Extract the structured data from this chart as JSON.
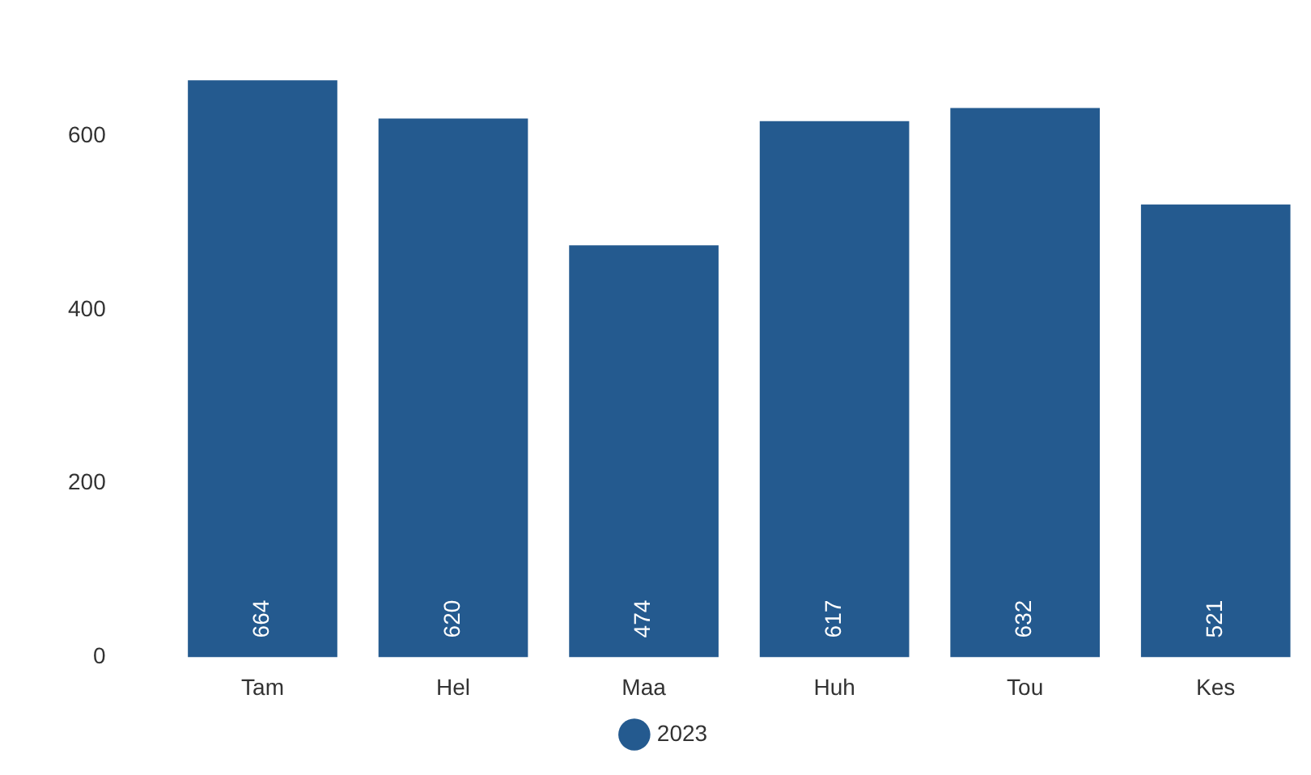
{
  "chart_data": {
    "type": "bar",
    "categories": [
      "Tam",
      "Hel",
      "Maa",
      "Huh",
      "Tou",
      "Kes"
    ],
    "series": [
      {
        "name": "2023",
        "color": "#245a8f",
        "values": [
          664,
          620,
          474,
          617,
          632,
          521
        ]
      }
    ],
    "ylim": [
      0,
      670
    ],
    "yticks": [
      0,
      200,
      400,
      600
    ],
    "grid": false,
    "legend": "bottom",
    "data_labels": true,
    "marker": "circle"
  }
}
